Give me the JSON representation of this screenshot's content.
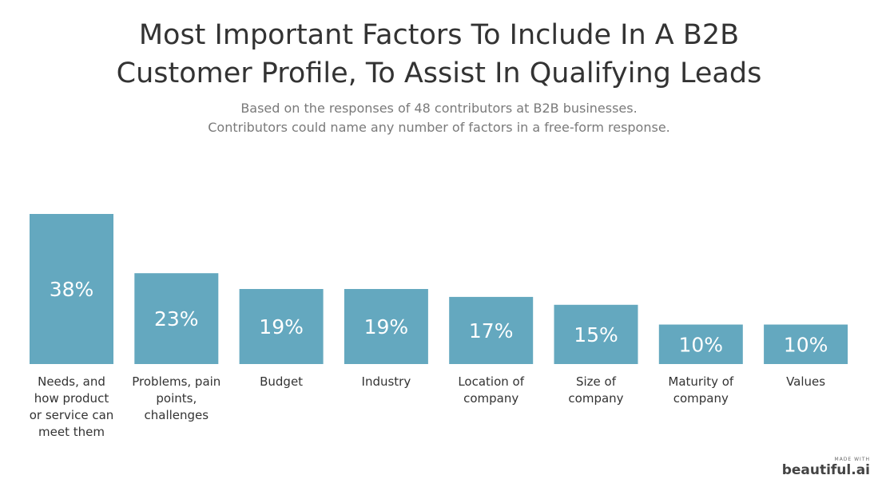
{
  "title_line1": "Most Important Factors To Include In A B2B",
  "title_line2": "Customer Profile, To Assist In Qualifying Leads",
  "subtitle_line1": "Based on the responses of 48 contributors at B2B businesses.",
  "subtitle_line2": "Contributors could name any number of factors in a free-form response.",
  "branding": {
    "made_with": "MADE WITH",
    "name": "beautiful.ai"
  },
  "chart_data": {
    "type": "bar",
    "categories": [
      "Needs, and how product or service can meet them",
      "Problems, pain points, challenges",
      "Budget",
      "Industry",
      "Location of company",
      "Size of company",
      "Maturity of company",
      "Values"
    ],
    "values": [
      38,
      23,
      19,
      19,
      17,
      15,
      10,
      10
    ],
    "value_labels": [
      "38%",
      "23%",
      "19%",
      "19%",
      "17%",
      "15%",
      "10%",
      "10%"
    ],
    "ylim": [
      0,
      38
    ],
    "bar_color": "#64a8bf",
    "grid": false,
    "legend": "none"
  }
}
